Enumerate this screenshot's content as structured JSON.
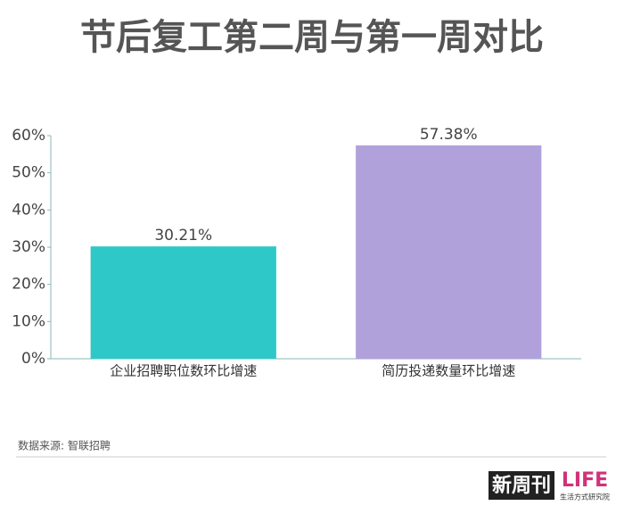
{
  "chart_data": {
    "type": "bar",
    "title": "节后复工第二周与第一周对比",
    "categories": [
      "企业招聘职位数环比增速",
      "简历投递数量环比增速"
    ],
    "values": [
      30.21,
      57.38
    ],
    "value_labels": [
      "30.21%",
      "57.38%"
    ],
    "colors": [
      "#2ec8c8",
      "#b1a1db"
    ],
    "ylim": [
      0,
      60
    ],
    "yticks": [
      {
        "value": 0,
        "label": "0%"
      },
      {
        "value": 10,
        "label": "10%"
      },
      {
        "value": 20,
        "label": "20%"
      },
      {
        "value": 30,
        "label": "30%"
      },
      {
        "value": 40,
        "label": "40%"
      },
      {
        "value": 50,
        "label": "50%"
      },
      {
        "value": 60,
        "label": "60%"
      }
    ],
    "grid": false,
    "source": "数据来源: 智联招聘"
  },
  "logos": {
    "left": "新周刊",
    "right": "LIFE",
    "right_sub": "生活方式研究院"
  }
}
